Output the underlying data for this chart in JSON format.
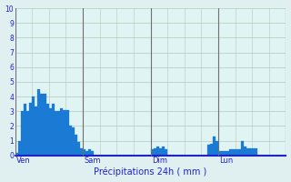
{
  "title": "",
  "xlabel": "Précipitations 24h ( mm )",
  "ylabel": "",
  "background_color": "#e0f0f0",
  "plot_bg_color": "#e0f4f4",
  "bar_color": "#1a7ad4",
  "bar_edge_color": "#1a7ad4",
  "axis_color": "#2222cc",
  "grid_color_h": "#b8c8b8",
  "grid_color_v": "#b8c8b8",
  "day_line_color": "#707070",
  "ylim": [
    0,
    10
  ],
  "yticks": [
    0,
    1,
    2,
    3,
    4,
    5,
    6,
    7,
    8,
    9,
    10
  ],
  "n_bars": 96,
  "day_labels": [
    "Ven",
    "Sam",
    "Dim",
    "Lun"
  ],
  "day_positions": [
    0,
    24,
    48,
    72
  ],
  "values": [
    0.2,
    1.0,
    3.0,
    3.5,
    3.0,
    3.6,
    4.0,
    3.3,
    4.5,
    4.2,
    4.2,
    3.5,
    3.2,
    3.5,
    3.0,
    3.0,
    3.2,
    3.1,
    3.1,
    2.0,
    1.9,
    1.4,
    0.9,
    0.5,
    0.4,
    0.3,
    0.4,
    0.3,
    0.0,
    0.0,
    0.0,
    0.0,
    0.0,
    0.0,
    0.0,
    0.0,
    0.0,
    0.0,
    0.0,
    0.0,
    0.0,
    0.0,
    0.0,
    0.0,
    0.0,
    0.0,
    0.0,
    0.0,
    0.4,
    0.5,
    0.6,
    0.5,
    0.6,
    0.4,
    0.0,
    0.0,
    0.0,
    0.0,
    0.0,
    0.0,
    0.0,
    0.0,
    0.0,
    0.0,
    0.0,
    0.0,
    0.0,
    0.0,
    0.7,
    0.8,
    1.3,
    1.0,
    0.3,
    0.3,
    0.3,
    0.3,
    0.4,
    0.4,
    0.4,
    0.4,
    1.0,
    0.6,
    0.5,
    0.5,
    0.5,
    0.5,
    0.0,
    0.0,
    0.0,
    0.0,
    0.0,
    0.0,
    0.0,
    0.0,
    0.0,
    0.0
  ]
}
